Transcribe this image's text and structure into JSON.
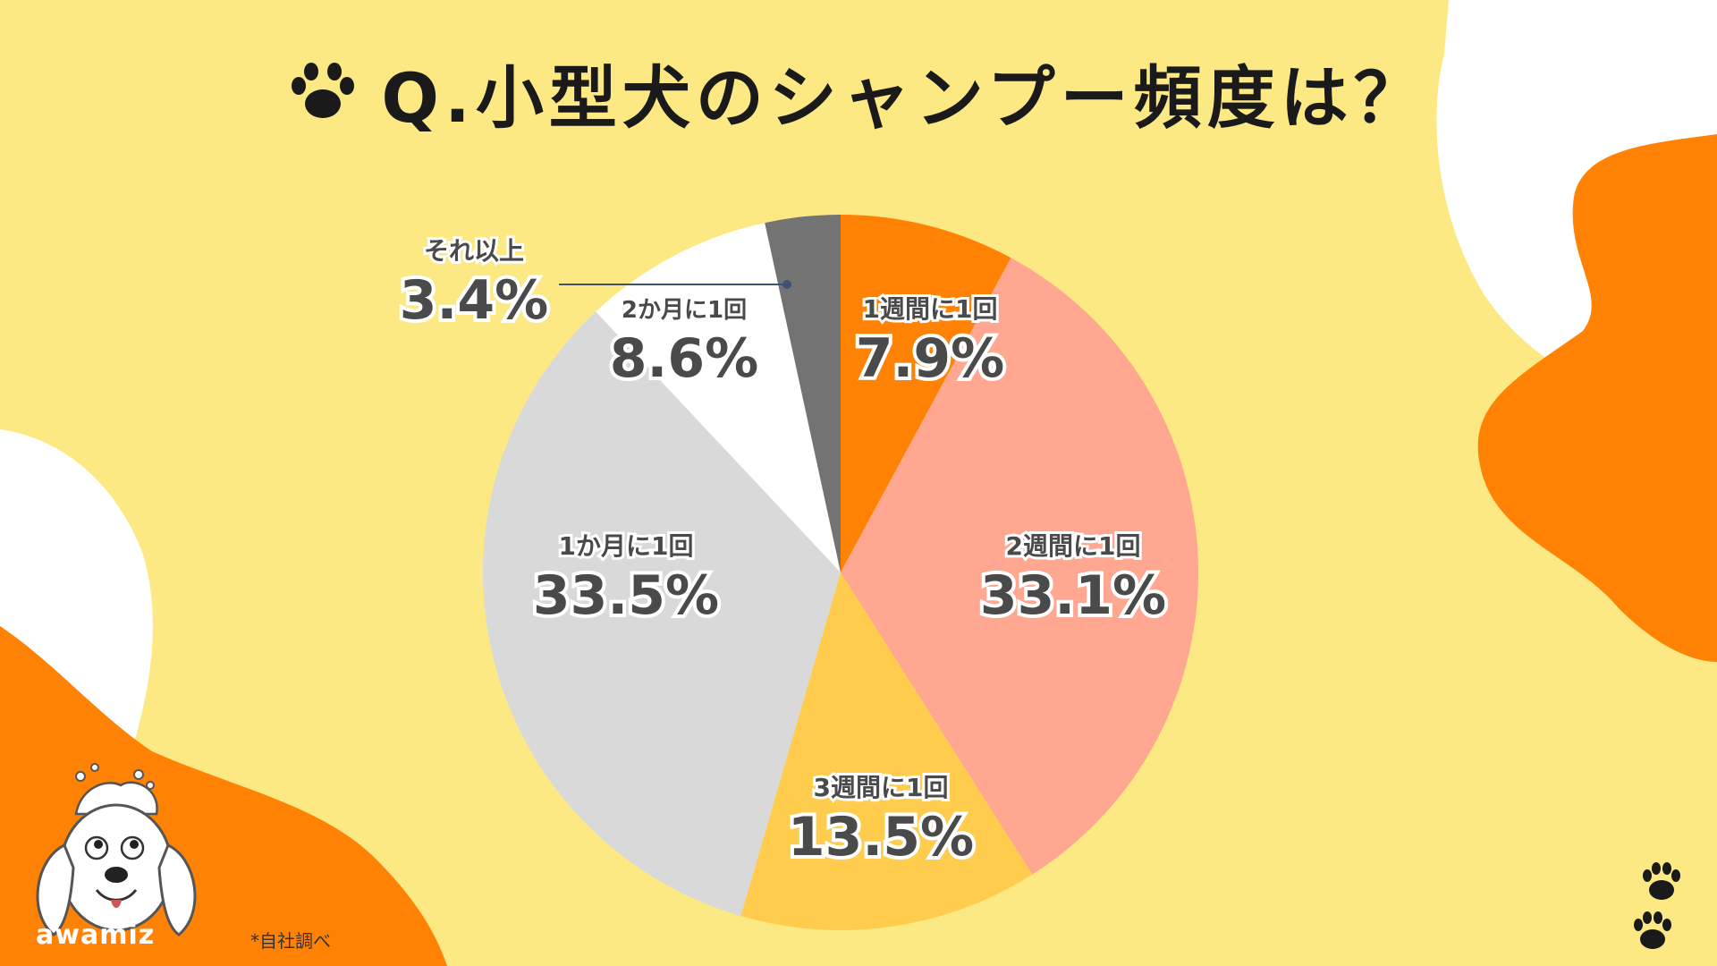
{
  "title": "Q.小型犬のシャンプー頻度は？",
  "note": "*自社調べ",
  "logo": {
    "text": "awamiz"
  },
  "icons": {
    "title": "paw-icon",
    "corner": "paw-icon"
  },
  "colors": {
    "background": "#FDE983",
    "accent_orange": "#FF8204",
    "blob_white": "#FFFFFF"
  },
  "chart_data": {
    "type": "pie",
    "title": "Q.小型犬のシャンプー頻度は？",
    "start": "12 o'clock",
    "direction": "clockwise",
    "slices": [
      {
        "label": "1週間に1回",
        "display": "7.9%",
        "value": 7.9,
        "color": "#FF8204"
      },
      {
        "label": "2週間に1回",
        "display": "33.1%",
        "value": 33.1,
        "color": "#FFA790"
      },
      {
        "label": "3週間に1回",
        "display": "13.5%",
        "value": 13.5,
        "color": "#FFCC4D"
      },
      {
        "label": "1か月に1回",
        "display": "33.5%",
        "value": 33.5,
        "color": "#D9D9D9"
      },
      {
        "label": "2か月に1回",
        "display": "8.6%",
        "value": 8.6,
        "color": "#FFFFFF"
      },
      {
        "label": "それ以上",
        "display": "3.4%",
        "value": 3.4,
        "color": "#737373"
      }
    ]
  }
}
